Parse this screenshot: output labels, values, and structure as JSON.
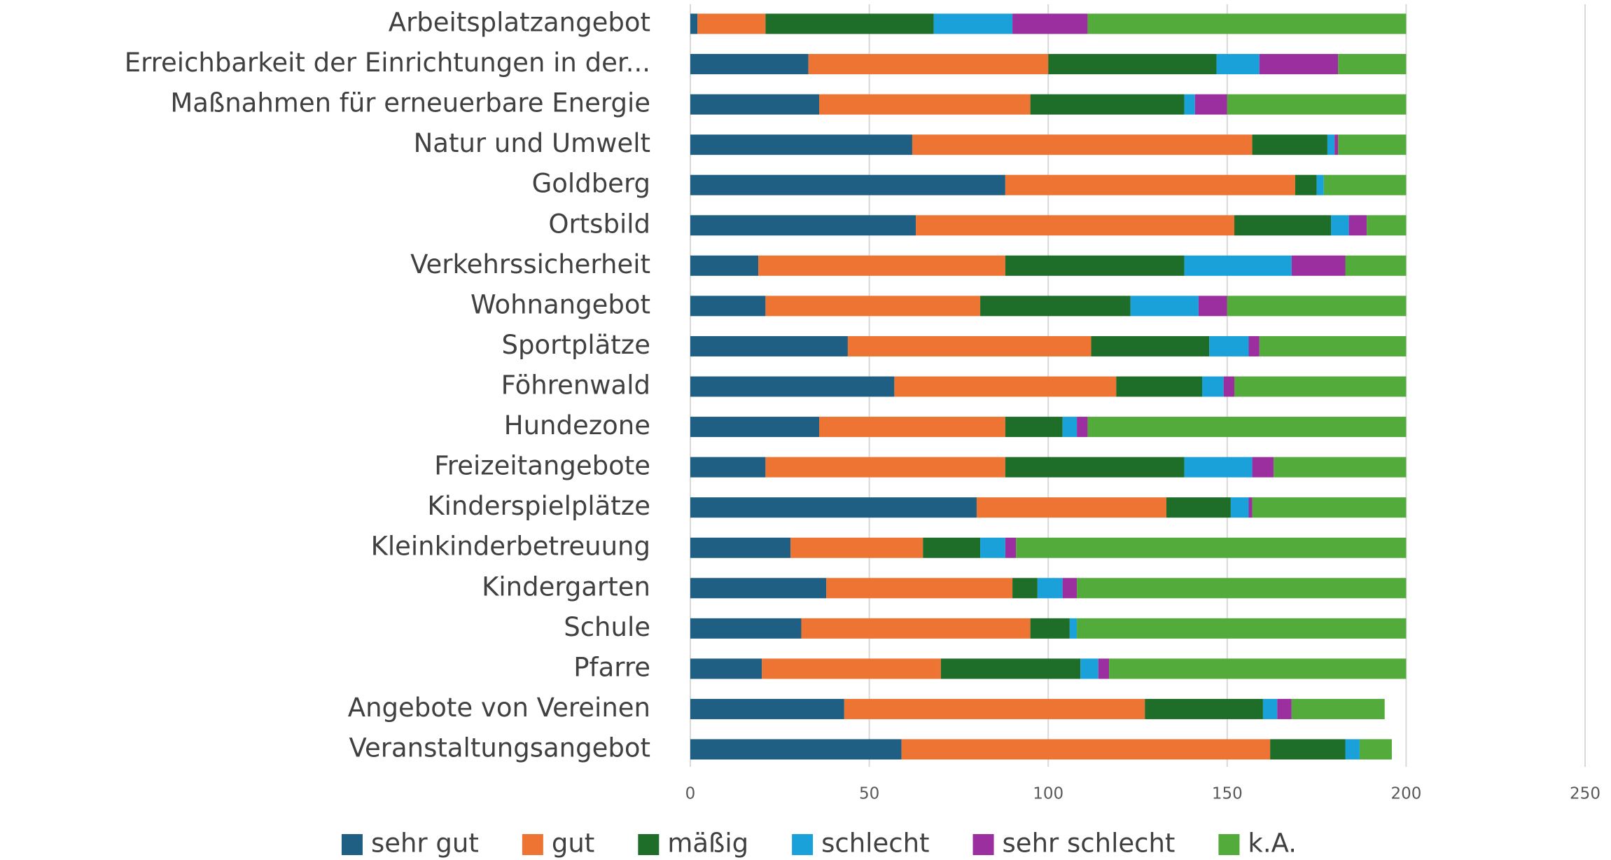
{
  "chart_data": {
    "type": "stacked_barh",
    "categories": [
      "Arbeitsplatzangebot",
      "Erreichbarkeit der Einrichtungen in der...",
      "Maßnahmen für erneuerbare Energie",
      "Natur und Umwelt",
      "Goldberg",
      "Ortsbild",
      "Verkehrssicherheit",
      "Wohnangebot",
      "Sportplätze",
      "Föhrenwald",
      "Hundezone",
      "Freizeitangebote",
      "Kinderspielplätze",
      "Kleinkinderbetreuung",
      "Kindergarten",
      "Schule",
      "Pfarre",
      "Angebote von Vereinen",
      "Veranstaltungsangebot"
    ],
    "series": [
      {
        "name": "sehr gut",
        "color": "#1f5f84",
        "values": [
          2,
          33,
          36,
          62,
          88,
          63,
          19,
          21,
          44,
          57,
          36,
          21,
          80,
          28,
          38,
          31,
          20,
          43,
          59
        ]
      },
      {
        "name": "gut",
        "color": "#ed7432",
        "values": [
          19,
          67,
          59,
          95,
          81,
          89,
          69,
          60,
          68,
          62,
          52,
          67,
          53,
          37,
          52,
          64,
          50,
          84,
          103
        ]
      },
      {
        "name": "mäßig",
        "color": "#1e6e2a",
        "values": [
          47,
          47,
          43,
          21,
          6,
          27,
          50,
          42,
          33,
          24,
          16,
          50,
          18,
          16,
          7,
          11,
          39,
          33,
          21
        ]
      },
      {
        "name": "schlecht",
        "color": "#1ba1d9",
        "values": [
          22,
          12,
          3,
          2,
          2,
          5,
          30,
          19,
          11,
          6,
          4,
          19,
          5,
          7,
          7,
          2,
          5,
          4,
          4
        ]
      },
      {
        "name": "sehr schlecht",
        "color": "#9b2f9f",
        "values": [
          21,
          22,
          9,
          1,
          0,
          5,
          15,
          8,
          3,
          3,
          3,
          6,
          1,
          3,
          4,
          0,
          3,
          4,
          0
        ]
      },
      {
        "name": "k.A.",
        "color": "#53ab3b",
        "values": [
          89,
          19,
          50,
          19,
          23,
          11,
          17,
          50,
          41,
          48,
          89,
          37,
          43,
          109,
          92,
          92,
          83,
          26,
          9
        ]
      }
    ],
    "xlim": [
      0,
      250
    ],
    "xticks": [
      0,
      50,
      100,
      150,
      200,
      250
    ],
    "grid": true,
    "legend": "bottom"
  }
}
